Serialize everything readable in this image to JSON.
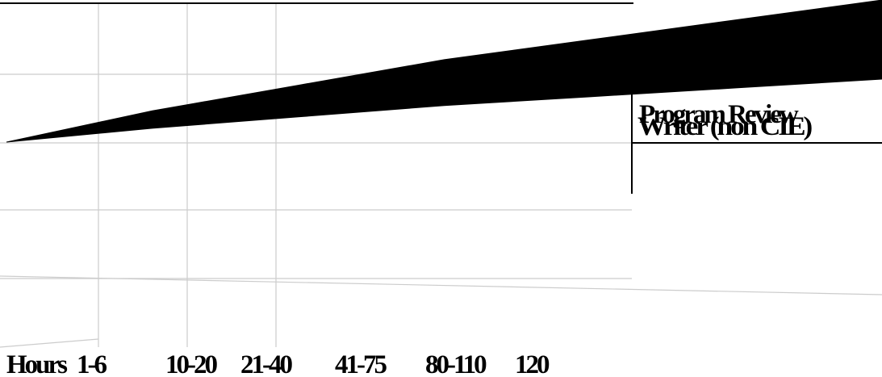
{
  "chart_data": {
    "type": "area",
    "categories": [
      "Hours",
      "1-6",
      "10-20",
      "21-40",
      "41-75",
      "80-110",
      "120"
    ],
    "series": [
      {
        "name": "Program Review Writer (non CIE)",
        "color": "#000000",
        "values": [
          0,
          1.1,
          2.0,
          2.9,
          3.6,
          4.3,
          5.0
        ]
      }
    ],
    "ylim": [
      0,
      5
    ],
    "grid": true,
    "legend": "right"
  }
}
